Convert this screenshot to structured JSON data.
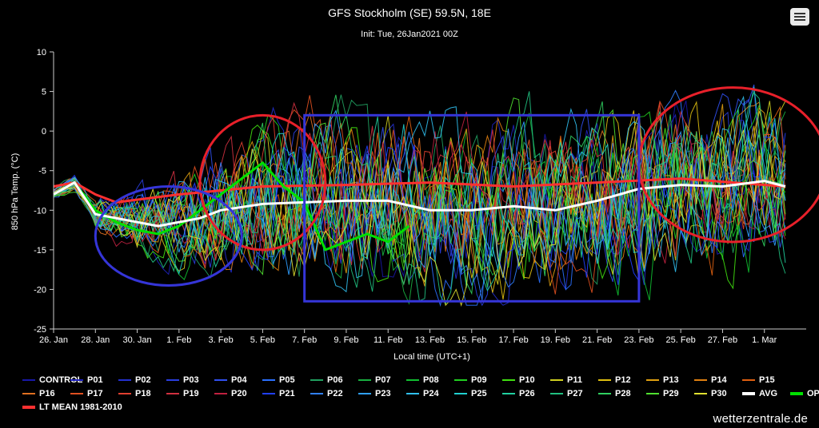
{
  "menu": {
    "icon": "hamburger-menu-icon"
  },
  "credit": "wetterzentrale.de",
  "colors": {
    "background": "#000000",
    "avg": "#ffffff",
    "oper": "#00e000",
    "ltmean": "#ff3030",
    "circle_red": "#e8202a",
    "shape_blue": "#3535d8"
  },
  "chart_data": {
    "type": "line",
    "title": "GFS Stockholm (SE) 59.5N, 18E",
    "subtitle": "Init: Tue, 26Jan2021 00Z",
    "xlabel": "Local time (UTC+1)",
    "ylabel": "850 hPa Temp. (°C)",
    "ylim": [
      -25,
      10
    ],
    "yticks": [
      "10",
      "5",
      "0",
      "-5",
      "-10",
      "-15",
      "-20",
      "-25"
    ],
    "xlim": [
      "2021-01-26",
      "2021-03-03"
    ],
    "xticks": [
      "26. Jan",
      "28. Jan",
      "30. Jan",
      "1. Feb",
      "3. Feb",
      "5. Feb",
      "7. Feb",
      "9. Feb",
      "11. Feb",
      "13. Feb",
      "15. Feb",
      "17. Feb",
      "19. Feb",
      "21. Feb",
      "23. Feb",
      "25. Feb",
      "27. Feb",
      "1. Mar"
    ],
    "grid": false,
    "legend_position": "bottom",
    "avg": {
      "name": "AVG",
      "x": [
        "2021-01-26",
        "2021-01-27",
        "2021-01-28",
        "2021-01-29",
        "2021-01-30",
        "2021-01-31",
        "2021-02-01",
        "2021-02-02",
        "2021-02-03",
        "2021-02-05",
        "2021-02-07",
        "2021-02-09",
        "2021-02-11",
        "2021-02-13",
        "2021-02-15",
        "2021-02-17",
        "2021-02-19",
        "2021-02-21",
        "2021-02-23",
        "2021-02-25",
        "2021-02-27",
        "2021-03-01",
        "2021-03-02"
      ],
      "y": [
        -8,
        -6.5,
        -10.5,
        -11,
        -11.5,
        -12,
        -11.5,
        -11,
        -10,
        -9.2,
        -9,
        -8.8,
        -8.8,
        -10,
        -10,
        -9.5,
        -10,
        -8.8,
        -7.3,
        -6.8,
        -7,
        -6.3,
        -7
      ]
    },
    "oper": {
      "name": "OPER",
      "x": [
        "2021-01-26",
        "2021-01-27",
        "2021-01-28",
        "2021-01-29",
        "2021-01-30",
        "2021-01-31",
        "2021-02-01",
        "2021-02-02",
        "2021-02-03",
        "2021-02-04",
        "2021-02-05",
        "2021-02-06",
        "2021-02-07",
        "2021-02-08",
        "2021-02-09",
        "2021-02-10",
        "2021-02-11",
        "2021-02-12"
      ],
      "y": [
        -8,
        -6.5,
        -10,
        -11.5,
        -12.5,
        -13,
        -12,
        -10,
        -8,
        -6,
        -4,
        -7,
        -9,
        -15,
        -14,
        -13,
        -14,
        -12
      ]
    },
    "ltmean": {
      "name": "LT MEAN 1981-2010",
      "x": [
        "2021-01-26",
        "2021-01-27",
        "2021-01-28",
        "2021-01-29",
        "2021-02-01",
        "2021-02-05",
        "2021-02-09",
        "2021-02-13",
        "2021-02-17",
        "2021-02-21",
        "2021-02-25",
        "2021-03-02"
      ],
      "y": [
        -7,
        -6.5,
        -8,
        -9,
        -8,
        -7,
        -6.8,
        -6.5,
        -7,
        -6.5,
        -6,
        -7
      ]
    },
    "members": [
      "CONTROL",
      "P01",
      "P02",
      "P03",
      "P04",
      "P05",
      "P06",
      "P07",
      "P08",
      "P09",
      "P10",
      "P11",
      "P12",
      "P13",
      "P14",
      "P15",
      "P16",
      "P17",
      "P18",
      "P19",
      "P20",
      "P21",
      "P22",
      "P23",
      "P24",
      "P25",
      "P26",
      "P27",
      "P28",
      "P29",
      "P30"
    ],
    "member_colors": [
      "#1818a8",
      "#1e22c0",
      "#2330d0",
      "#2a3ee0",
      "#3050f0",
      "#2a70ff",
      "#20a060",
      "#18b040",
      "#10c030",
      "#20d020",
      "#40e010",
      "#d0d020",
      "#e0c010",
      "#e0a010",
      "#e08010",
      "#e06010",
      "#e07020",
      "#e05020",
      "#e04030",
      "#d03040",
      "#c02040",
      "#2040ff",
      "#3080ff",
      "#30a0ff",
      "#30c0f0",
      "#20d0d0",
      "#20d0a0",
      "#20c080",
      "#30d060",
      "#50e030",
      "#e0e030"
    ],
    "member_range": [
      -22,
      7
    ]
  },
  "legend": {
    "items": [
      {
        "label": "CONTROL",
        "color": "#1818a8",
        "width": 2
      },
      {
        "label": "P01",
        "color": "#1e22c0",
        "width": 2
      },
      {
        "label": "P02",
        "color": "#2330d0",
        "width": 2
      },
      {
        "label": "P03",
        "color": "#2a3ee0",
        "width": 2
      },
      {
        "label": "P04",
        "color": "#3050f0",
        "width": 2
      },
      {
        "label": "P05",
        "color": "#2a70ff",
        "width": 2
      },
      {
        "label": "P06",
        "color": "#20a060",
        "width": 2
      },
      {
        "label": "P07",
        "color": "#18b040",
        "width": 2
      },
      {
        "label": "P08",
        "color": "#10c030",
        "width": 2
      },
      {
        "label": "P09",
        "color": "#20d020",
        "width": 2
      },
      {
        "label": "P10",
        "color": "#40e010",
        "width": 2
      },
      {
        "label": "P11",
        "color": "#d0d020",
        "width": 2
      },
      {
        "label": "P12",
        "color": "#e0c010",
        "width": 2
      },
      {
        "label": "P13",
        "color": "#e0a010",
        "width": 2
      },
      {
        "label": "P14",
        "color": "#e08010",
        "width": 2
      },
      {
        "label": "P15",
        "color": "#e06010",
        "width": 2
      },
      {
        "label": "P16",
        "color": "#e07020",
        "width": 2
      },
      {
        "label": "P17",
        "color": "#e05020",
        "width": 2
      },
      {
        "label": "P18",
        "color": "#e04030",
        "width": 2
      },
      {
        "label": "P19",
        "color": "#d03040",
        "width": 2
      },
      {
        "label": "P20",
        "color": "#c02040",
        "width": 2
      },
      {
        "label": "P21",
        "color": "#2040ff",
        "width": 2
      },
      {
        "label": "P22",
        "color": "#3080ff",
        "width": 2
      },
      {
        "label": "P23",
        "color": "#30a0ff",
        "width": 2
      },
      {
        "label": "P24",
        "color": "#30c0f0",
        "width": 2
      },
      {
        "label": "P25",
        "color": "#20d0d0",
        "width": 2
      },
      {
        "label": "P26",
        "color": "#20d0a0",
        "width": 2
      },
      {
        "label": "P27",
        "color": "#20c080",
        "width": 2
      },
      {
        "label": "P28",
        "color": "#30d060",
        "width": 2
      },
      {
        "label": "P29",
        "color": "#50e030",
        "width": 2
      },
      {
        "label": "P30",
        "color": "#e0e030",
        "width": 2
      },
      {
        "label": "AVG",
        "color": "#ffffff",
        "width": 4
      },
      {
        "label": "OPER",
        "color": "#00e000",
        "width": 4
      },
      {
        "label": "LT MEAN 1981-2010",
        "color": "#ff3030",
        "width": 4
      }
    ]
  },
  "annotations": {
    "red_circles": [
      {
        "x_from": "2021-02-02",
        "x_to": "2021-02-08",
        "y_from": -15,
        "y_to": 2
      },
      {
        "x_from": "2021-02-23",
        "x_to": "2021-03-04",
        "y_from": -14,
        "y_to": 5.5
      }
    ],
    "blue_ellipse": {
      "x_from": "2021-01-28",
      "x_to": "2021-02-04",
      "y_from": -19.5,
      "y_to": -7
    },
    "blue_rect": {
      "x_from": "2021-02-07",
      "x_to": "2021-02-23",
      "y_from": -21.5,
      "y_to": 2
    }
  }
}
